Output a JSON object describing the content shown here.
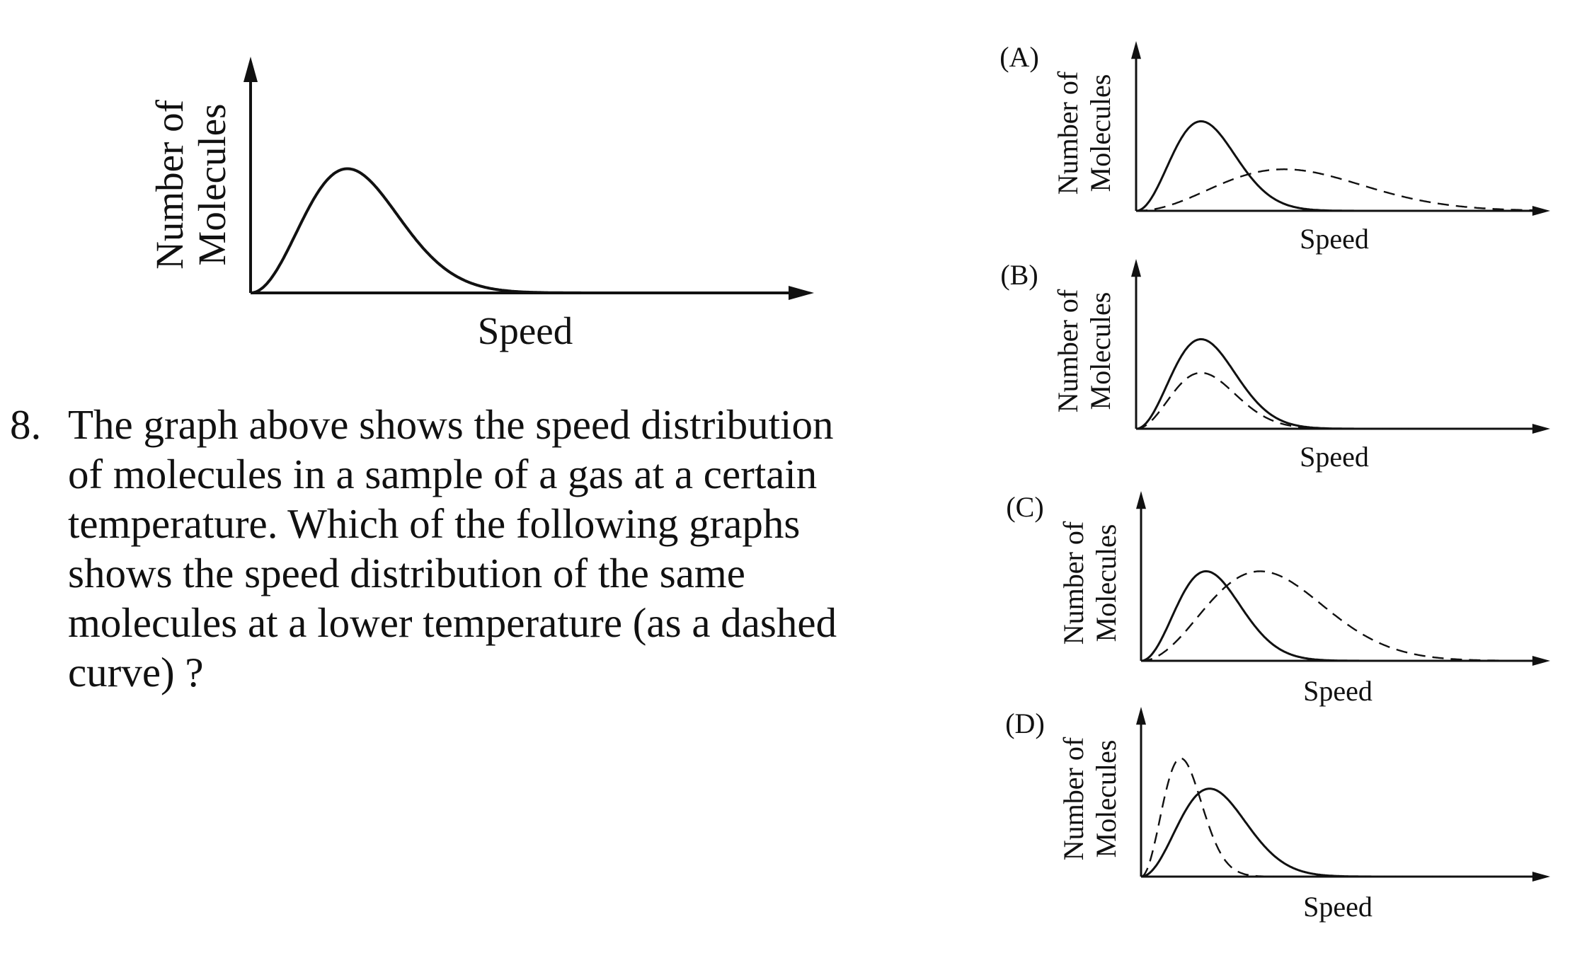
{
  "question": {
    "number": "8.",
    "lines": [
      "The graph above shows the speed distribution",
      "of molecules in a sample of a gas at a certain",
      "temperature. Which of the following graphs",
      "shows the speed distribution of the same",
      "molecules at a lower temperature (as a dashed",
      "curve) ?"
    ]
  },
  "chart_data": [
    {
      "id": "reference",
      "type": "line",
      "title": "",
      "xlabel": "Speed",
      "ylabel_lines": [
        "Number of",
        "Molecules"
      ],
      "xlim": [
        0,
        10
      ],
      "ylim": [
        0,
        1
      ],
      "series": [
        {
          "name": "given temperature",
          "style": "solid",
          "peak_speed": 1.9,
          "peak_height": 0.67
        }
      ]
    },
    {
      "id": "A",
      "option": "(A)",
      "type": "line",
      "xlabel": "Speed",
      "ylabel_lines": [
        "Number of",
        "Molecules"
      ],
      "xlim": [
        0,
        10
      ],
      "ylim": [
        0,
        1
      ],
      "series": [
        {
          "name": "given temperature",
          "style": "solid",
          "peak_speed": 1.8,
          "peak_height": 0.56
        },
        {
          "name": "other temperature",
          "style": "dashed",
          "peak_speed": 4.1,
          "peak_height": 0.26
        }
      ]
    },
    {
      "id": "B",
      "option": "(B)",
      "type": "line",
      "xlabel": "Speed",
      "ylabel_lines": [
        "Number of",
        "Molecules"
      ],
      "xlim": [
        0,
        10
      ],
      "ylim": [
        0,
        1
      ],
      "series": [
        {
          "name": "given temperature",
          "style": "solid",
          "peak_speed": 1.8,
          "peak_height": 0.56
        },
        {
          "name": "other temperature",
          "style": "dashed",
          "peak_speed": 1.8,
          "peak_height": 0.35
        }
      ]
    },
    {
      "id": "C",
      "option": "(C)",
      "type": "line",
      "xlabel": "Speed",
      "ylabel_lines": [
        "Number of",
        "Molecules"
      ],
      "xlim": [
        0,
        10
      ],
      "ylim": [
        0,
        1
      ],
      "series": [
        {
          "name": "given temperature",
          "style": "solid",
          "peak_speed": 1.8,
          "peak_height": 0.56
        },
        {
          "name": "other temperature",
          "style": "dashed",
          "peak_speed": 3.3,
          "peak_height": 0.56
        }
      ]
    },
    {
      "id": "D",
      "option": "(D)",
      "type": "line",
      "xlabel": "Speed",
      "ylabel_lines": [
        "Number of",
        "Molecules"
      ],
      "xlim": [
        0,
        10
      ],
      "ylim": [
        0,
        1
      ],
      "series": [
        {
          "name": "given temperature",
          "style": "solid",
          "peak_speed": 1.9,
          "peak_height": 0.55
        },
        {
          "name": "other temperature",
          "style": "dashed",
          "peak_speed": 1.1,
          "peak_height": 0.74
        }
      ]
    }
  ],
  "colors": {
    "ink": "#111111",
    "background": "#ffffff"
  }
}
